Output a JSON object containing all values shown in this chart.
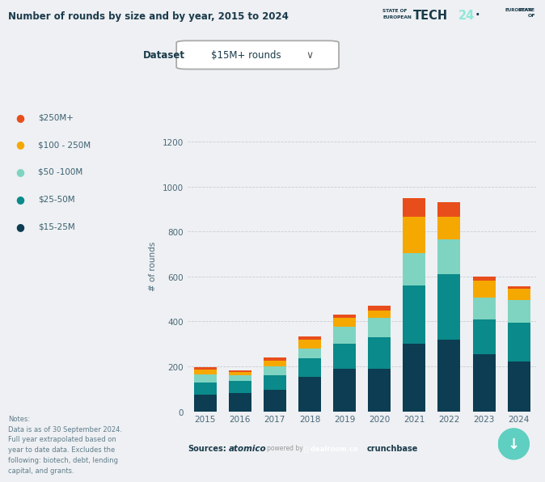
{
  "title": "Number of rounds by size and by year, 2015 to 2024",
  "years": [
    "2015",
    "2016",
    "2017",
    "2018",
    "2019",
    "2020",
    "2021",
    "2022",
    "2023",
    "2024"
  ],
  "categories": [
    "$15-25M",
    "$25-50M",
    "$50-100M",
    "$100-250M",
    "$250M+"
  ],
  "colors": [
    "#0d4f6e",
    "#0a8a8a",
    "#7fd4c1",
    "#f5a800",
    "#e84e1b"
  ],
  "data": {
    "$15-25M": [
      75,
      80,
      95,
      155,
      190,
      190,
      300,
      320,
      255,
      220
    ],
    "$25-50M": [
      55,
      55,
      65,
      80,
      110,
      140,
      260,
      290,
      155,
      175
    ],
    "$50-100M": [
      35,
      25,
      40,
      45,
      75,
      85,
      145,
      155,
      95,
      100
    ],
    "$100-250M": [
      20,
      15,
      25,
      40,
      40,
      35,
      160,
      100,
      75,
      50
    ],
    "$250M+": [
      10,
      8,
      15,
      15,
      15,
      20,
      85,
      65,
      20,
      10
    ]
  },
  "ylabel": "# of rounds",
  "ylim": [
    0,
    1300
  ],
  "yticks": [
    0,
    200,
    400,
    600,
    800,
    1000,
    1200
  ],
  "bg_color": "#eef0f3",
  "plot_bg": "#eef0f3",
  "bar_width": 0.65,
  "legend_items": [
    [
      "$250M+",
      "#e84e1b"
    ],
    [
      "$100 - 250M",
      "#f5a800"
    ],
    [
      "$50 -100M",
      "#7fd4c1"
    ],
    [
      "$25-50M",
      "#0a8a8a"
    ],
    [
      "$15-25M",
      "#0d3d52"
    ]
  ],
  "dataset_label": "$15M+ rounds",
  "notes": "Notes:\nData is as of 30 September 2024.\nFull year extrapolated based on\nyear to date data. Excludes the\nfollowing: biotech, debt, lending\ncapital, and grants."
}
